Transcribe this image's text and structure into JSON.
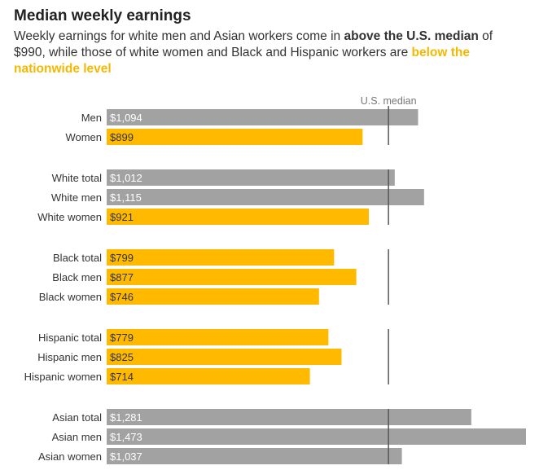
{
  "title": "Median weekly earnings",
  "subtitle": {
    "part1": "Weekly earnings for white men and Asian workers come in ",
    "highlight_above": "above the U.S. median",
    "part2": " of $990, while those of white women and Black and Hispanic workers are ",
    "highlight_below": "below the nationwide level"
  },
  "colors": {
    "above": "#a2a2a2",
    "below": "#ffba00",
    "median_line": "#555555",
    "label_on_gray": "#ffffff",
    "label_on_yellow": "#333333"
  },
  "chart_data": {
    "type": "bar",
    "orientation": "horizontal",
    "reference_line": {
      "label": "U.S. median",
      "value": 990
    },
    "categories": [
      "Men",
      "Women",
      "White total",
      "White men",
      "White women",
      "Black total",
      "Black men",
      "Black women",
      "Hispanic total",
      "Hispanic men",
      "Hispanic women",
      "Asian total",
      "Asian men",
      "Asian women"
    ],
    "values": [
      1094,
      899,
      1012,
      1115,
      921,
      799,
      877,
      746,
      779,
      825,
      714,
      1281,
      1473,
      1037
    ],
    "value_labels": [
      "$1,094",
      "$899",
      "$1,012",
      "$1,115",
      "$921",
      "$799",
      "$877",
      "$746",
      "$779",
      "$825",
      "$714",
      "$1,281",
      "$1,473",
      "$1,037"
    ],
    "groups": [
      {
        "categories": [
          "Men",
          "Women"
        ]
      },
      {
        "categories": [
          "White total",
          "White men",
          "White women"
        ]
      },
      {
        "categories": [
          "Black total",
          "Black men",
          "Black women"
        ]
      },
      {
        "categories": [
          "Hispanic total",
          "Hispanic men",
          "Hispanic women"
        ]
      },
      {
        "categories": [
          "Asian total",
          "Asian men",
          "Asian women"
        ]
      }
    ],
    "xlim": [
      0,
      1473
    ]
  }
}
